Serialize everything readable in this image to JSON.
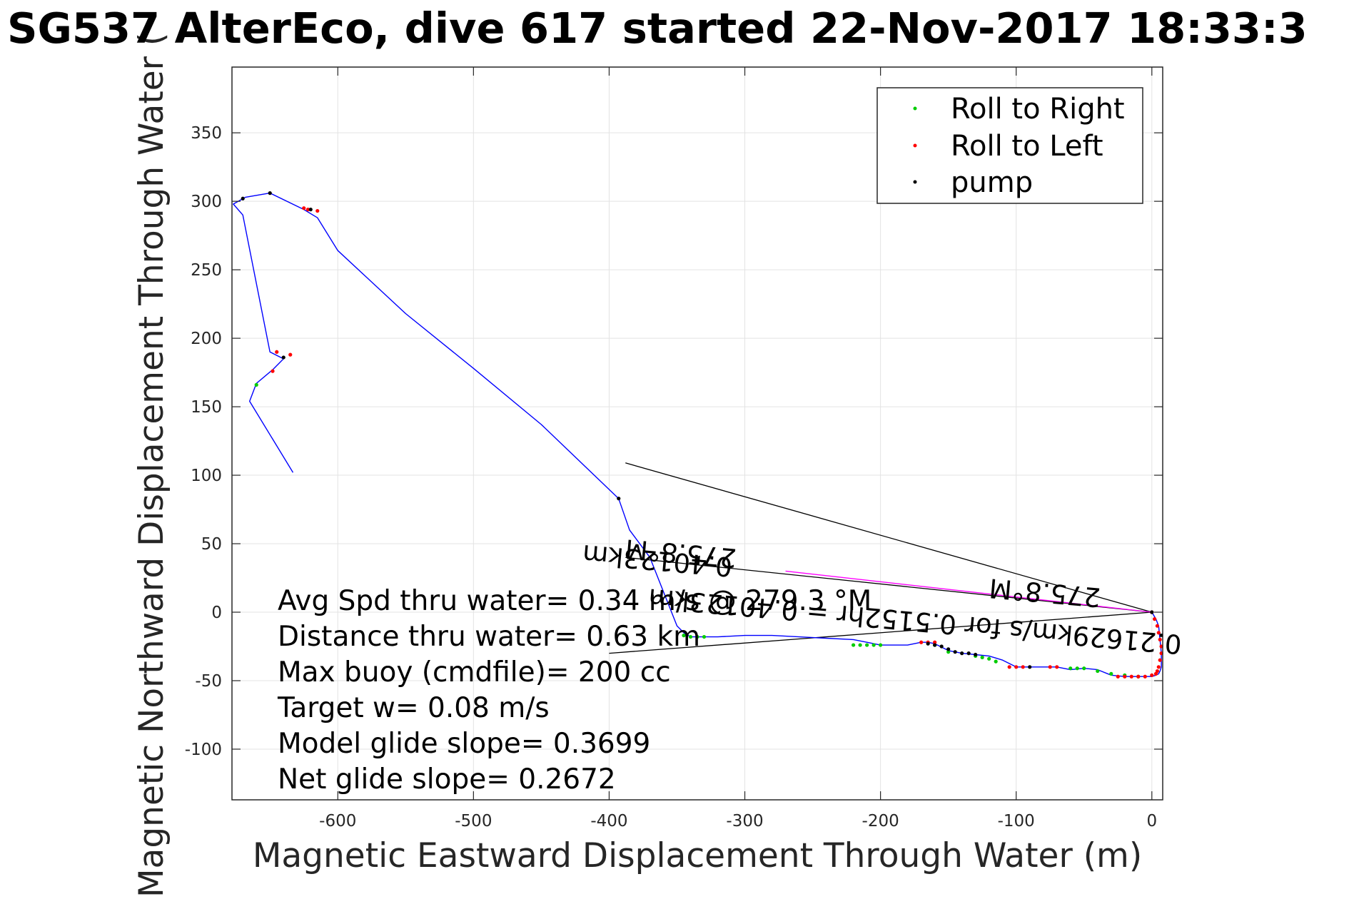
{
  "chart_data": {
    "type": "line",
    "title": "SG537 AlterEco, dive 617 started 22-Nov-2017 18:33:3",
    "xlabel": "Magnetic Eastward Displacement Through Water (m)",
    "ylabel": "Magnetic Northward Displacement Through Water (",
    "xlim": [
      -678,
      8
    ],
    "ylim": [
      -137,
      398
    ],
    "x_ticks": [
      -600,
      -500,
      -400,
      -300,
      -200,
      -100,
      0
    ],
    "x_tick_labels": [
      "-600",
      "-500",
      "-400",
      "-300",
      "-200",
      "-100",
      "0"
    ],
    "y_ticks": [
      -100,
      -50,
      0,
      50,
      100,
      150,
      200,
      250,
      300,
      350
    ],
    "y_tick_labels": [
      "-100",
      "-50",
      "0",
      "50",
      "100",
      "150",
      "200",
      "250",
      "300",
      "350"
    ],
    "grid": true,
    "legend_position": "top-right",
    "legend": [
      {
        "label": "Roll to Right",
        "color": "#00cc00"
      },
      {
        "label": "Roll to Left",
        "color": "#ff0000"
      },
      {
        "label": "pump",
        "color": "#000000"
      }
    ],
    "track": {
      "name": "",
      "color": "#0000ff",
      "x": [
        0,
        3,
        5,
        6,
        7,
        7,
        6,
        5,
        3,
        0,
        -5,
        -10,
        -20,
        -30,
        -40,
        -50,
        -60,
        -70,
        -80,
        -90,
        -100,
        -110,
        -120,
        -130,
        -140,
        -150,
        -160,
        -165,
        -170,
        -180,
        -190,
        -200,
        -210,
        -220,
        -240,
        -260,
        -280,
        -300,
        -320,
        -340,
        -345,
        -350,
        -360,
        -370,
        -385,
        -393,
        -450,
        -500,
        -550,
        -600,
        -615,
        -625,
        -650,
        -668,
        -677,
        -670,
        -650,
        -640,
        -648,
        -660,
        -665,
        -633
      ],
      "y": [
        0,
        -5,
        -10,
        -20,
        -30,
        -40,
        -43,
        -45,
        -46,
        -47,
        -47,
        -47,
        -47,
        -46,
        -42,
        -41,
        -42,
        -40,
        -40,
        -40,
        -40,
        -35,
        -32,
        -31,
        -30,
        -28,
        -23,
        -22,
        -22,
        -24,
        -24,
        -24,
        -22,
        -20,
        -19,
        -18,
        -17,
        -17,
        -18,
        -18,
        -15,
        -10,
        15,
        40,
        60,
        83,
        137,
        178,
        218,
        264,
        288,
        294,
        306,
        303,
        298,
        290,
        190,
        185,
        177,
        167,
        154,
        102
      ]
    },
    "roll_right_points": {
      "x": [
        -10,
        -20,
        -30,
        -40,
        -50,
        -55,
        -60,
        -115,
        -120,
        -125,
        -130,
        -150,
        -160,
        -200,
        -205,
        -210,
        -215,
        -220,
        -330,
        -335,
        -340,
        -345,
        -660
      ],
      "y": [
        -47,
        -46,
        -45,
        -43,
        -41,
        -41,
        -41,
        -36,
        -34,
        -33,
        -32,
        -29,
        -24,
        -24,
        -24,
        -24,
        -24,
        -24,
        -18,
        -18,
        -18,
        -17,
        166
      ]
    },
    "roll_left_points": {
      "x": [
        0,
        2,
        4,
        5,
        6,
        7,
        7,
        6,
        5,
        4,
        3,
        0,
        -5,
        -10,
        -15,
        -20,
        -25,
        -70,
        -75,
        -95,
        -100,
        -105,
        -160,
        -165,
        -170,
        -615,
        -622,
        -625,
        -645,
        -648,
        -635
      ],
      "y": [
        0,
        -5,
        -10,
        -15,
        -20,
        -25,
        -30,
        -35,
        -40,
        -43,
        -45,
        -46,
        -47,
        -47,
        -47,
        -47,
        -47,
        -40,
        -40,
        -40,
        -40,
        -40,
        -22,
        -22,
        -22,
        293,
        294,
        295,
        190,
        176,
        188
      ]
    },
    "pump_points": {
      "x": [
        0,
        -90,
        -130,
        -135,
        -140,
        -145,
        -150,
        -155,
        -160,
        -165,
        -393,
        -620,
        -650,
        -670,
        -640
      ],
      "y": [
        0,
        -40,
        -31,
        -30,
        -30,
        -29,
        -27,
        -25,
        -24,
        -23,
        83,
        294,
        306,
        302,
        186
      ]
    },
    "reference_lines": [
      {
        "color": "#000000",
        "x": [
          0,
          -388
        ],
        "y": [
          0,
          109
        ]
      },
      {
        "color": "#000000",
        "x": [
          0,
          -400
        ],
        "y": [
          0,
          -30
        ]
      },
      {
        "color": "#000000",
        "x": [
          0,
          -388
        ],
        "y": [
          0,
          40
        ]
      },
      {
        "color": "#ff00ff",
        "x": [
          0,
          -270
        ],
        "y": [
          0,
          30
        ]
      }
    ],
    "mirrored_annotations": [
      "0.40123km",
      "275.8°M",
      "0.21629km/s for 0.5152hr = 0.40123km",
      "275.8°M"
    ],
    "annotations": [
      "Avg Spd thru water=  0.34 m/s @ 279.3 °M",
      "Distance thru water=  0.63 km",
      "Max buoy (cmdfile)= 200 cc",
      "Target w= 0.08 m/s",
      "Model glide slope= 0.3699",
      "Net glide slope= 0.2672"
    ]
  }
}
